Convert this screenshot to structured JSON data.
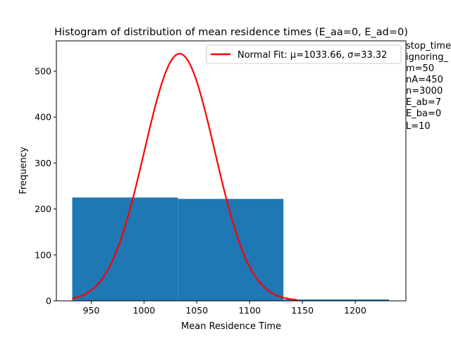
{
  "chart_data": {
    "type": "bar",
    "title": "Histogram of distribution of mean residence times (E_aa=0, E_ad=0)",
    "xlabel": "Mean Residence Time",
    "ylabel": "Frequency",
    "xlim": [
      917,
      1248
    ],
    "ylim": [
      0,
      566
    ],
    "xticks": [
      950,
      1000,
      1050,
      1100,
      1150,
      1200
    ],
    "yticks": [
      0,
      100,
      200,
      300,
      400,
      500
    ],
    "grid": false,
    "legend_position": "top-right",
    "colors": {
      "bars": "#1f77b4",
      "fit": "#ff0000",
      "axes": "#000000"
    },
    "bins": [
      {
        "x_start": 932,
        "x_end": 1032,
        "value": 225
      },
      {
        "x_start": 1032,
        "x_end": 1132,
        "value": 222
      },
      {
        "x_start": 1132,
        "x_end": 1232,
        "value": 3
      }
    ],
    "series": [
      {
        "name": "Normal Fit: μ=1033.66, σ=33.32",
        "type": "line",
        "mu": 1033.66,
        "sigma": 33.32,
        "x_range": [
          932,
          1145
        ],
        "peak_frequency": 538
      }
    ],
    "annotations": [
      "stop_time",
      "ignoring_",
      "m=50",
      "nA=450",
      "n=3000",
      "E_ab=7",
      "E_ba=0",
      "L=10"
    ]
  }
}
